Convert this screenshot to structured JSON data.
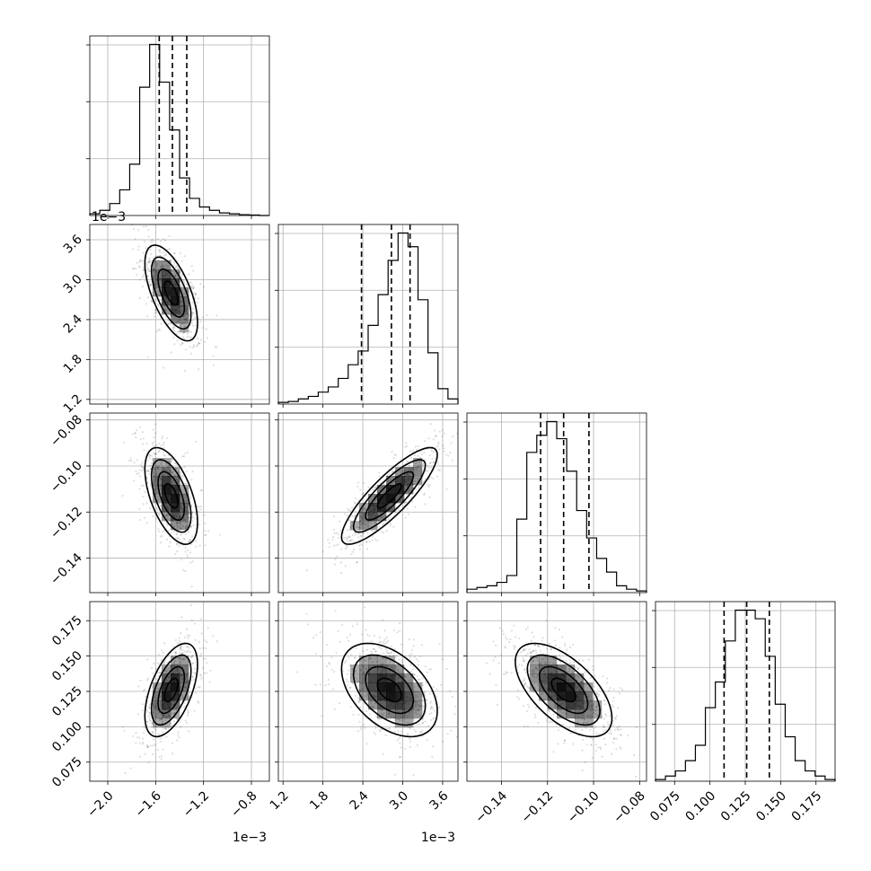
{
  "chart_data": {
    "type": "corner",
    "grid": true,
    "parameters": [
      {
        "range": [
          -2.15,
          -0.65
        ],
        "ticks": [
          -2.0,
          -1.6,
          -1.2,
          -0.8
        ],
        "tick_labels": [
          "−2.0",
          "−1.6",
          "−1.2",
          "−0.8"
        ],
        "offset_label": "1e−3",
        "quantiles": [
          -1.57,
          -1.46,
          -1.34
        ]
      },
      {
        "range": [
          1.13,
          3.83
        ],
        "ticks": [
          1.2,
          1.8,
          2.4,
          3.0,
          3.6
        ],
        "tick_labels": [
          "1.2",
          "1.8",
          "2.4",
          "3.0",
          "3.6"
        ],
        "offset_label": "1e−3",
        "quantiles": [
          2.38,
          2.83,
          3.11
        ]
      },
      {
        "range": [
          -0.155,
          -0.077
        ],
        "ticks": [
          -0.14,
          -0.12,
          -0.1,
          -0.08
        ],
        "tick_labels": [
          "−0.14",
          "−0.12",
          "−0.10",
          "−0.08"
        ],
        "offset_label": "",
        "quantiles": [
          -0.123,
          -0.113,
          -0.102
        ]
      },
      {
        "range": [
          0.0615,
          0.1885
        ],
        "ticks": [
          0.075,
          0.1,
          0.125,
          0.15,
          0.175
        ],
        "tick_labels": [
          "0.075",
          "0.100",
          "0.125",
          "0.150",
          "0.175"
        ],
        "offset_label": "",
        "quantiles": [
          0.11,
          0.126,
          0.142
        ]
      }
    ],
    "histograms": [
      [
        0.01,
        0.03,
        0.07,
        0.15,
        0.3,
        0.75,
        1.0,
        0.78,
        0.5,
        0.22,
        0.1,
        0.05,
        0.03,
        0.015,
        0.01,
        0.005,
        0.003,
        0.0
      ],
      [
        0.01,
        0.015,
        0.03,
        0.045,
        0.07,
        0.1,
        0.15,
        0.23,
        0.31,
        0.46,
        0.64,
        0.84,
        1.0,
        0.92,
        0.61,
        0.3,
        0.09,
        0.03
      ],
      [
        0.02,
        0.03,
        0.04,
        0.06,
        0.1,
        0.43,
        0.82,
        0.92,
        1.0,
        0.9,
        0.71,
        0.48,
        0.32,
        0.2,
        0.12,
        0.04,
        0.02,
        0.01
      ],
      [
        0.01,
        0.03,
        0.06,
        0.12,
        0.21,
        0.43,
        0.58,
        0.82,
        1.0,
        1.0,
        0.95,
        0.73,
        0.45,
        0.26,
        0.12,
        0.06,
        0.03,
        0.01
      ]
    ],
    "pairs": [
      {
        "row": 1,
        "col": 0,
        "mean": [
          -1.47,
          2.8
        ],
        "sd": [
          0.11,
          0.36
        ],
        "rho": -0.62
      },
      {
        "row": 2,
        "col": 0,
        "mean": [
          -1.47,
          -0.113
        ],
        "sd": [
          0.11,
          0.0105
        ],
        "rho": -0.55
      },
      {
        "row": 2,
        "col": 1,
        "mean": [
          2.8,
          -0.113
        ],
        "sd": [
          0.36,
          0.0105
        ],
        "rho": 0.85
      },
      {
        "row": 3,
        "col": 0,
        "mean": [
          -1.47,
          0.126
        ],
        "sd": [
          0.11,
          0.0165
        ],
        "rho": 0.55
      },
      {
        "row": 3,
        "col": 1,
        "mean": [
          2.8,
          0.126
        ],
        "sd": [
          0.36,
          0.0165
        ],
        "rho": -0.45
      },
      {
        "row": 3,
        "col": 2,
        "mean": [
          -0.113,
          0.126
        ],
        "sd": [
          0.0105,
          0.0165
        ],
        "rho": -0.6
      }
    ]
  }
}
